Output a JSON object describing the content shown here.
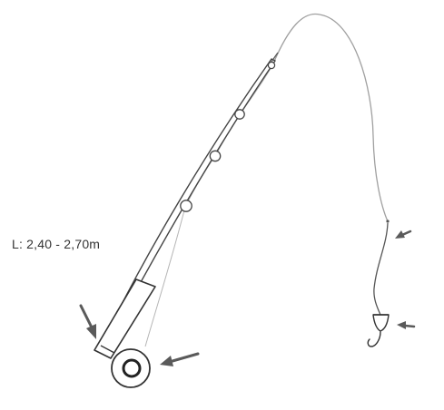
{
  "diagram": {
    "length_label": "L: 2,40 - 2,70m",
    "colors": {
      "outline": "#333333",
      "rod": "#555555",
      "line": "#9a9a9a",
      "arrow": "#5a5a5a"
    },
    "parts": [
      {
        "name": "rod",
        "icon": "fishing-rod-icon"
      },
      {
        "name": "reel",
        "icon": "reel-icon"
      },
      {
        "name": "handle",
        "icon": "handle-icon"
      },
      {
        "name": "line-guides",
        "count": 4
      },
      {
        "name": "fishing-line"
      },
      {
        "name": "sinker"
      },
      {
        "name": "float",
        "icon": "float-icon"
      },
      {
        "name": "hook",
        "icon": "hook-icon"
      }
    ],
    "pointer_arrows": [
      "handle",
      "reel",
      "sinker",
      "float"
    ]
  }
}
